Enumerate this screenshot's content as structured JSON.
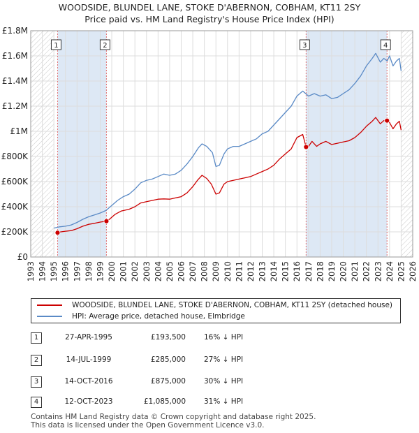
{
  "title_line1": "WOODSIDE, BLUNDEL LANE, STOKE D'ABERNON, COBHAM, KT11 2SY",
  "title_line2": "Price paid vs. HM Land Registry's House Price Index (HPI)",
  "chart_data": {
    "type": "line",
    "xlim": [
      1993,
      2026
    ],
    "ylim": [
      0,
      1800000
    ],
    "y_ticks": [
      0,
      200000,
      400000,
      600000,
      800000,
      1000000,
      1200000,
      1400000,
      1600000,
      1800000
    ],
    "y_tick_labels": [
      "£0",
      "£200K",
      "£400K",
      "£600K",
      "£800K",
      "£1M",
      "£1.2M",
      "£1.4M",
      "£1.6M",
      "£1.8M"
    ],
    "x_ticks": [
      1993,
      1994,
      1995,
      1996,
      1997,
      1998,
      1999,
      2000,
      2001,
      2002,
      2003,
      2004,
      2005,
      2006,
      2007,
      2008,
      2009,
      2010,
      2011,
      2012,
      2013,
      2014,
      2015,
      2016,
      2017,
      2018,
      2019,
      2020,
      2021,
      2022,
      2023,
      2024,
      2025,
      2026
    ],
    "shaded_periods": [
      [
        1995.32,
        1999.54
      ],
      [
        2016.79,
        2023.78
      ]
    ],
    "hatched_ranges": [
      [
        1993,
        1995.0
      ],
      [
        2025.0,
        2026
      ]
    ],
    "colors": {
      "property": "#cc0000",
      "hpi": "#5a8ac6",
      "shade": "#dde8f5"
    },
    "series": [
      {
        "name": "WOODSIDE, BLUNDEL LANE, STOKE D'ABERNON, COBHAM, KT11 2SY (detached house)",
        "key": "property",
        "points": [
          [
            1995.32,
            193500
          ],
          [
            1995.6,
            200000
          ],
          [
            1996.0,
            205000
          ],
          [
            1996.5,
            210000
          ],
          [
            1997.0,
            225000
          ],
          [
            1997.5,
            245000
          ],
          [
            1998.0,
            260000
          ],
          [
            1998.5,
            268000
          ],
          [
            1999.0,
            278000
          ],
          [
            1999.54,
            285000
          ],
          [
            1999.8,
            300000
          ],
          [
            2000.3,
            340000
          ],
          [
            2000.8,
            365000
          ],
          [
            2001.5,
            380000
          ],
          [
            2002.0,
            400000
          ],
          [
            2002.5,
            430000
          ],
          [
            2003.0,
            440000
          ],
          [
            2003.5,
            450000
          ],
          [
            2004.0,
            460000
          ],
          [
            2004.5,
            462000
          ],
          [
            2005.0,
            460000
          ],
          [
            2005.5,
            470000
          ],
          [
            2006.0,
            480000
          ],
          [
            2006.5,
            510000
          ],
          [
            2007.0,
            560000
          ],
          [
            2007.4,
            610000
          ],
          [
            2007.8,
            650000
          ],
          [
            2008.2,
            625000
          ],
          [
            2008.6,
            580000
          ],
          [
            2009.0,
            500000
          ],
          [
            2009.3,
            510000
          ],
          [
            2009.7,
            580000
          ],
          [
            2010.0,
            600000
          ],
          [
            2010.5,
            610000
          ],
          [
            2011.0,
            620000
          ],
          [
            2011.5,
            630000
          ],
          [
            2012.0,
            640000
          ],
          [
            2012.5,
            660000
          ],
          [
            2013.0,
            680000
          ],
          [
            2013.5,
            700000
          ],
          [
            2014.0,
            730000
          ],
          [
            2014.5,
            780000
          ],
          [
            2015.0,
            820000
          ],
          [
            2015.5,
            860000
          ],
          [
            2016.0,
            950000
          ],
          [
            2016.5,
            975000
          ],
          [
            2016.79,
            875000
          ],
          [
            2017.0,
            880000
          ],
          [
            2017.3,
            920000
          ],
          [
            2017.7,
            880000
          ],
          [
            2018.0,
            900000
          ],
          [
            2018.5,
            920000
          ],
          [
            2019.0,
            895000
          ],
          [
            2019.5,
            905000
          ],
          [
            2020.0,
            915000
          ],
          [
            2020.5,
            925000
          ],
          [
            2021.0,
            950000
          ],
          [
            2021.5,
            990000
          ],
          [
            2022.0,
            1040000
          ],
          [
            2022.5,
            1080000
          ],
          [
            2022.8,
            1110000
          ],
          [
            2023.2,
            1060000
          ],
          [
            2023.5,
            1085000
          ],
          [
            2023.78,
            1085000
          ],
          [
            2024.0,
            1070000
          ],
          [
            2024.3,
            1020000
          ],
          [
            2024.6,
            1060000
          ],
          [
            2024.85,
            1080000
          ],
          [
            2025.0,
            1010000
          ]
        ]
      },
      {
        "name": "HPI: Average price, detached house, Elmbridge",
        "key": "hpi",
        "points": [
          [
            1995.0,
            230000
          ],
          [
            1995.5,
            240000
          ],
          [
            1996.0,
            245000
          ],
          [
            1996.5,
            255000
          ],
          [
            1997.0,
            275000
          ],
          [
            1997.5,
            300000
          ],
          [
            1998.0,
            320000
          ],
          [
            1998.5,
            335000
          ],
          [
            1999.0,
            350000
          ],
          [
            1999.5,
            370000
          ],
          [
            2000.0,
            410000
          ],
          [
            2000.5,
            450000
          ],
          [
            2001.0,
            480000
          ],
          [
            2001.5,
            500000
          ],
          [
            2002.0,
            540000
          ],
          [
            2002.5,
            590000
          ],
          [
            2003.0,
            610000
          ],
          [
            2003.5,
            620000
          ],
          [
            2004.0,
            640000
          ],
          [
            2004.5,
            660000
          ],
          [
            2005.0,
            650000
          ],
          [
            2005.5,
            660000
          ],
          [
            2006.0,
            690000
          ],
          [
            2006.5,
            740000
          ],
          [
            2007.0,
            800000
          ],
          [
            2007.5,
            870000
          ],
          [
            2007.8,
            900000
          ],
          [
            2008.2,
            880000
          ],
          [
            2008.7,
            830000
          ],
          [
            2009.0,
            720000
          ],
          [
            2009.3,
            730000
          ],
          [
            2009.7,
            820000
          ],
          [
            2010.0,
            860000
          ],
          [
            2010.5,
            880000
          ],
          [
            2011.0,
            880000
          ],
          [
            2011.5,
            900000
          ],
          [
            2012.0,
            920000
          ],
          [
            2012.5,
            940000
          ],
          [
            2013.0,
            980000
          ],
          [
            2013.5,
            1000000
          ],
          [
            2014.0,
            1050000
          ],
          [
            2014.5,
            1100000
          ],
          [
            2015.0,
            1150000
          ],
          [
            2015.5,
            1200000
          ],
          [
            2016.0,
            1280000
          ],
          [
            2016.5,
            1320000
          ],
          [
            2017.0,
            1280000
          ],
          [
            2017.5,
            1300000
          ],
          [
            2018.0,
            1280000
          ],
          [
            2018.5,
            1290000
          ],
          [
            2019.0,
            1260000
          ],
          [
            2019.5,
            1270000
          ],
          [
            2020.0,
            1300000
          ],
          [
            2020.5,
            1330000
          ],
          [
            2021.0,
            1380000
          ],
          [
            2021.5,
            1440000
          ],
          [
            2022.0,
            1520000
          ],
          [
            2022.5,
            1580000
          ],
          [
            2022.8,
            1620000
          ],
          [
            2023.2,
            1550000
          ],
          [
            2023.5,
            1580000
          ],
          [
            2023.8,
            1560000
          ],
          [
            2024.0,
            1600000
          ],
          [
            2024.3,
            1520000
          ],
          [
            2024.6,
            1560000
          ],
          [
            2024.85,
            1580000
          ],
          [
            2025.0,
            1480000
          ]
        ]
      }
    ],
    "sales": [
      {
        "label": "1",
        "x": 1995.32,
        "y": 193500
      },
      {
        "label": "2",
        "x": 1999.54,
        "y": 285000
      },
      {
        "label": "3",
        "x": 2016.79,
        "y": 875000
      },
      {
        "label": "4",
        "x": 2023.78,
        "y": 1085000
      }
    ]
  },
  "legend": {
    "property_label": "WOODSIDE, BLUNDEL LANE, STOKE D'ABERNON, COBHAM, KT11 2SY (detached house)",
    "hpi_label": "HPI: Average price, detached house, Elmbridge"
  },
  "transactions": [
    {
      "num": "1",
      "date": "27-APR-1995",
      "price": "£193,500",
      "hpi": "16% ↓ HPI"
    },
    {
      "num": "2",
      "date": "14-JUL-1999",
      "price": "£285,000",
      "hpi": "27% ↓ HPI"
    },
    {
      "num": "3",
      "date": "14-OCT-2016",
      "price": "£875,000",
      "hpi": "30% ↓ HPI"
    },
    {
      "num": "4",
      "date": "12-OCT-2023",
      "price": "£1,085,000",
      "hpi": "31% ↓ HPI"
    }
  ],
  "footer": {
    "line1": "Contains HM Land Registry data © Crown copyright and database right 2025.",
    "line2": "This data is licensed under the Open Government Licence v3.0."
  }
}
